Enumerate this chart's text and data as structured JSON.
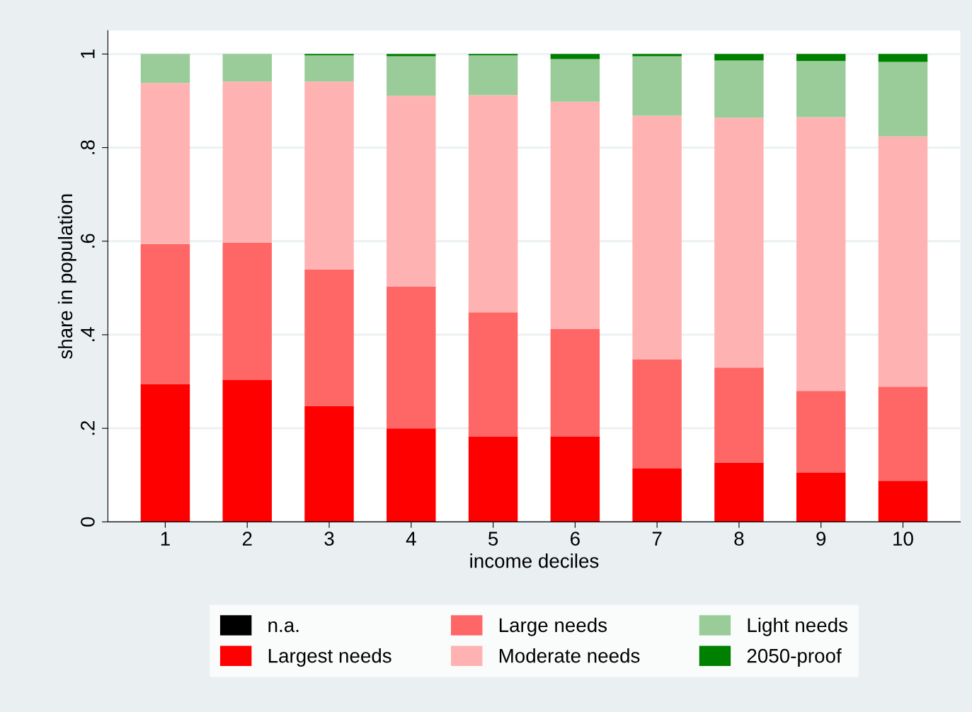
{
  "chart_data": {
    "type": "bar",
    "stacked": true,
    "xlabel": "income deciles",
    "ylabel": "share in population",
    "categories": [
      "1",
      "2",
      "3",
      "4",
      "5",
      "6",
      "7",
      "8",
      "9",
      "10"
    ],
    "series": [
      {
        "name": "n.a.",
        "color": "#000000",
        "values": [
          0,
          0,
          0,
          0,
          0,
          0,
          0,
          0,
          0,
          0
        ]
      },
      {
        "name": "Largest needs",
        "color": "#ff0000",
        "values": [
          0.295,
          0.303,
          0.247,
          0.2,
          0.183,
          0.182,
          0.114,
          0.127,
          0.105,
          0.088
        ]
      },
      {
        "name": "Large needs",
        "color": "#ff6666",
        "values": [
          0.299,
          0.294,
          0.292,
          0.303,
          0.265,
          0.23,
          0.233,
          0.203,
          0.175,
          0.201
        ]
      },
      {
        "name": "Moderate needs",
        "color": "#ffb2b2",
        "values": [
          0.344,
          0.344,
          0.402,
          0.408,
          0.464,
          0.486,
          0.521,
          0.534,
          0.585,
          0.535
        ]
      },
      {
        "name": "Light needs",
        "color": "#99cc99",
        "values": [
          0.062,
          0.059,
          0.056,
          0.084,
          0.085,
          0.091,
          0.127,
          0.122,
          0.12,
          0.159
        ]
      },
      {
        "name": "2050-proof",
        "color": "#008000",
        "values": [
          0,
          0,
          0.003,
          0.005,
          0.003,
          0.011,
          0.005,
          0.014,
          0.015,
          0.017
        ]
      }
    ],
    "ylim": [
      0,
      1.05
    ],
    "yticks": [
      0,
      {
        "value": 0.2,
        "label": ".2"
      },
      {
        "value": 0.4,
        "label": ".4"
      },
      {
        "value": 0.6,
        "label": ".6"
      },
      {
        "value": 0.8,
        "label": ".8"
      },
      1
    ],
    "grid": "y",
    "legend": "bottom"
  }
}
